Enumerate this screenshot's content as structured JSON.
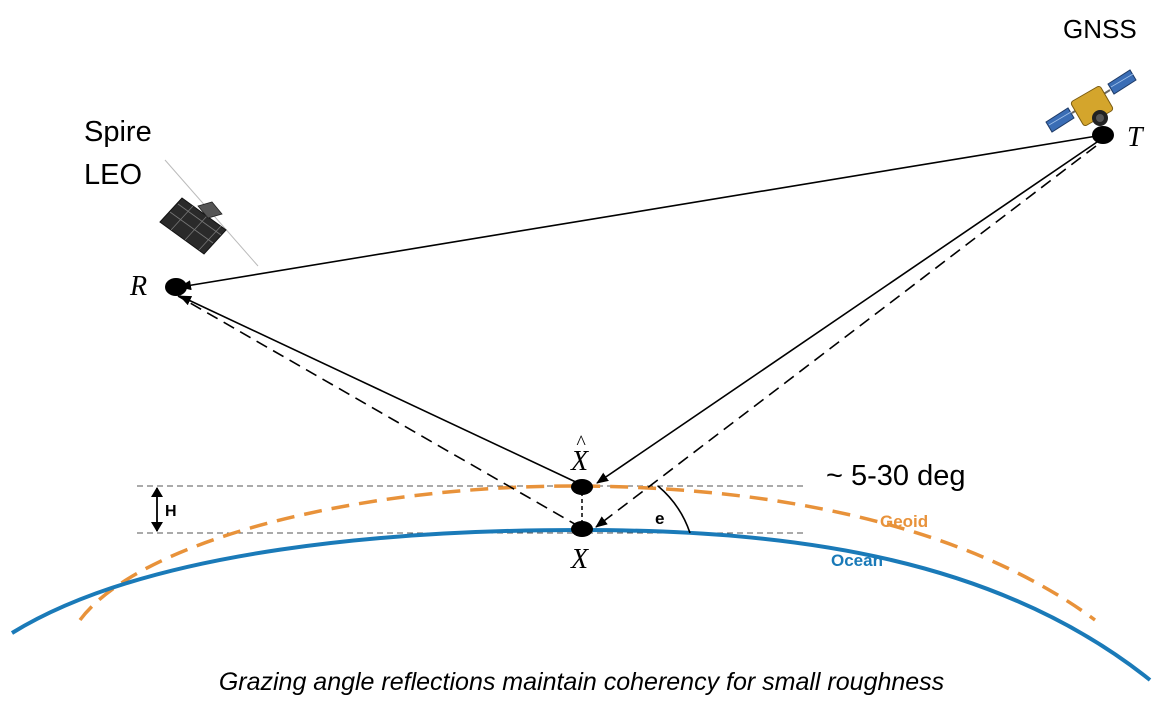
{
  "labels": {
    "gnss": "GNSS",
    "spire": "Spire",
    "leo": "LEO",
    "transmitter": "T",
    "receiver": "R",
    "specular_estimated": "X",
    "specular_true": "X",
    "height": "H",
    "elevation": "e",
    "angle_range": "~ 5-30 deg",
    "geoid": "Geoid",
    "ocean": "Ocean"
  },
  "caption": "Grazing angle reflections maintain coherency for small roughness",
  "colors": {
    "ocean": "#1a7ab8",
    "geoid": "#e8923a",
    "ray": "#000000"
  },
  "icons": {
    "gnss_satellite": "gnss-satellite-icon",
    "leo_satellite": "leo-satellite-icon"
  }
}
